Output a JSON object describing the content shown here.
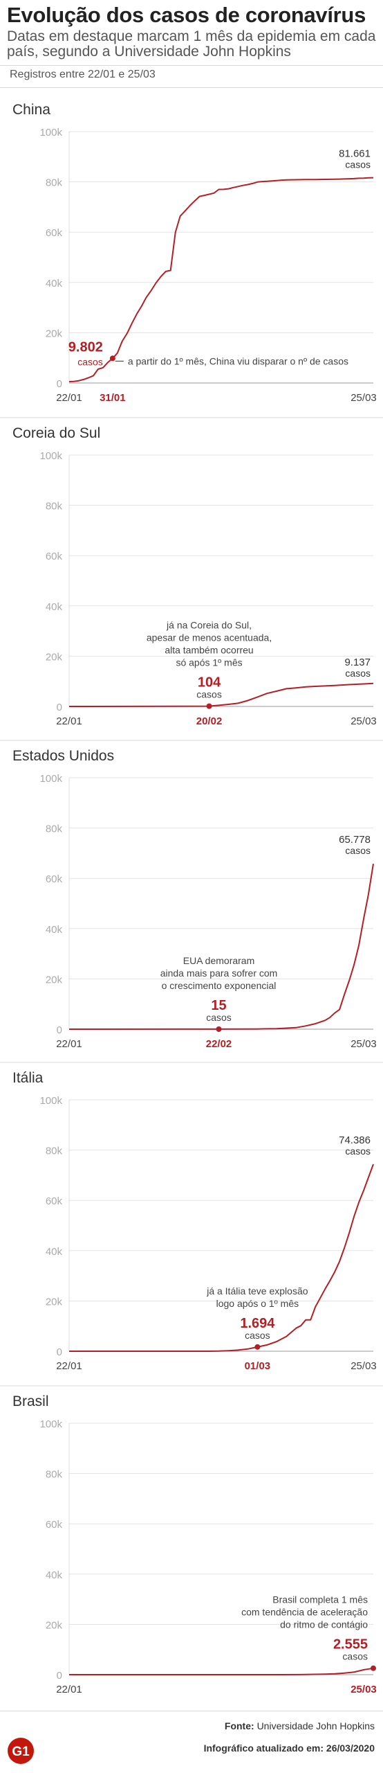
{
  "header": {
    "title": "Evolução dos casos de coronavírus",
    "subtitle": "Datas em destaque marcam 1 mês da epidemia em cada país, segundo a Universidade John Hopkins",
    "period": "Registros entre 22/01 e 25/03"
  },
  "footer": {
    "source_label": "Fonte:",
    "source_value": "Universidade John Hopkins",
    "updated_label": "Infográfico atualizado em:",
    "updated_value": "26/03/2020",
    "logo_text": "G1"
  },
  "colors": {
    "accent": "#b31f24",
    "grid": "#e3e3e3",
    "axis_text": "#aaaaaa",
    "brand": "#c4170c"
  },
  "chart_data": [
    {
      "type": "line",
      "title": "China",
      "ylim": [
        0,
        100000
      ],
      "yticks": [
        "0",
        "20k",
        "40k",
        "60k",
        "80k",
        "100k"
      ],
      "xlim": [
        "22/01",
        "25/03"
      ],
      "x_start_label": "22/01",
      "x_end_label": "25/03",
      "highlight": {
        "x": "31/01",
        "value": 9802,
        "value_label": "9.802",
        "unit": "casos"
      },
      "final": {
        "x": "25/03",
        "value": 81661,
        "value_label": "81.661",
        "unit": "casos"
      },
      "note": [
        "a partir do 1º mês, China viu disparar o nº de casos"
      ],
      "series": [
        {
          "x": [
            "22/01",
            "23/01",
            "24/01",
            "25/01",
            "26/01",
            "27/01",
            "28/01",
            "29/01",
            "30/01",
            "31/01",
            "01/02",
            "02/02",
            "03/02",
            "04/02",
            "05/02",
            "06/02",
            "07/02",
            "08/02",
            "09/02",
            "10/02",
            "11/02",
            "12/02",
            "13/02",
            "14/02",
            "15/02",
            "16/02",
            "17/02",
            "18/02",
            "19/02",
            "20/02",
            "21/02",
            "22/02",
            "23/02",
            "24/02",
            "25/02",
            "26/02",
            "27/02",
            "28/02",
            "29/02",
            "01/03",
            "02/03",
            "03/03",
            "04/03",
            "05/03",
            "06/03",
            "07/03",
            "08/03",
            "09/03",
            "10/03",
            "11/03",
            "12/03",
            "13/03",
            "14/03",
            "15/03",
            "16/03",
            "17/03",
            "18/03",
            "19/03",
            "20/03",
            "21/03",
            "22/03",
            "23/03",
            "24/03",
            "25/03"
          ],
          "values": [
            548,
            643,
            920,
            1406,
            2075,
            2877,
            5509,
            6087,
            8141,
            9802,
            11891,
            16630,
            19716,
            23707,
            27440,
            30587,
            34110,
            36814,
            39829,
            42354,
            44386,
            44759,
            59895,
            66358,
            68413,
            70513,
            72434,
            74211,
            74619,
            75077,
            75550,
            77001,
            77022,
            77241,
            77754,
            78166,
            78600,
            78928,
            79356,
            79932,
            80136,
            80261,
            80386,
            80537,
            80690,
            80770,
            80823,
            80860,
            80887,
            80921,
            80932,
            80945,
            80977,
            81003,
            81033,
            81058,
            81102,
            81156,
            81250,
            81305,
            81435,
            81498,
            81591,
            81661
          ]
        }
      ]
    },
    {
      "type": "line",
      "title": "Coreia do Sul",
      "ylim": [
        0,
        100000
      ],
      "yticks": [
        "0",
        "20k",
        "40k",
        "60k",
        "80k",
        "100k"
      ],
      "xlim": [
        "22/01",
        "25/03"
      ],
      "x_start_label": "22/01",
      "x_end_label": "25/03",
      "highlight": {
        "x": "20/02",
        "value": 104,
        "value_label": "104",
        "unit": "casos"
      },
      "final": {
        "x": "25/03",
        "value": 9137,
        "value_label": "9.137",
        "unit": "casos"
      },
      "note": [
        "já na Coreia do Sul,",
        "apesar de menos acentuada,",
        "alta também ocorreu",
        "só após 1º mês"
      ],
      "series": [
        {
          "x": [
            "22/01",
            "20/02",
            "22/02",
            "24/02",
            "26/02",
            "28/02",
            "01/03",
            "03/03",
            "05/03",
            "07/03",
            "09/03",
            "11/03",
            "13/03",
            "15/03",
            "17/03",
            "19/03",
            "21/03",
            "23/03",
            "25/03"
          ],
          "values": [
            1,
            104,
            433,
            833,
            1261,
            2337,
            3736,
            5186,
            6088,
            7041,
            7382,
            7755,
            7979,
            8162,
            8320,
            8565,
            8799,
            8961,
            9137
          ]
        }
      ]
    },
    {
      "type": "line",
      "title": "Estados Unidos",
      "ylim": [
        0,
        100000
      ],
      "yticks": [
        "0",
        "20k",
        "40k",
        "60k",
        "80k",
        "100k"
      ],
      "xlim": [
        "22/01",
        "25/03"
      ],
      "x_start_label": "22/01",
      "x_end_label": "25/03",
      "highlight": {
        "x": "22/02",
        "value": 15,
        "value_label": "15",
        "unit": "casos"
      },
      "final": {
        "x": "25/03",
        "value": 65778,
        "value_label": "65.778",
        "unit": "casos"
      },
      "note": [
        "EUA demoraram",
        "ainda mais para sofrer com",
        "o crescimento exponencial"
      ],
      "series": [
        {
          "x": [
            "22/01",
            "22/02",
            "01/03",
            "05/03",
            "09/03",
            "11/03",
            "13/03",
            "15/03",
            "16/03",
            "17/03",
            "18/03",
            "19/03",
            "20/03",
            "21/03",
            "22/03",
            "23/03",
            "24/03",
            "25/03"
          ],
          "values": [
            1,
            15,
            74,
            217,
            605,
            1281,
            2179,
            3499,
            4632,
            6421,
            7783,
            13747,
            19273,
            25600,
            33276,
            43847,
            53740,
            65778
          ]
        }
      ]
    },
    {
      "type": "line",
      "title": "Itália",
      "ylim": [
        0,
        100000
      ],
      "yticks": [
        "0",
        "20k",
        "40k",
        "60k",
        "80k",
        "100k"
      ],
      "xlim": [
        "22/01",
        "25/03"
      ],
      "x_start_label": "22/01",
      "x_end_label": "25/03",
      "highlight": {
        "x": "01/03",
        "value": 1694,
        "value_label": "1.694",
        "unit": "casos"
      },
      "final": {
        "x": "25/03",
        "value": 74386,
        "value_label": "74.386",
        "unit": "casos"
      },
      "note": [
        "já a Itália teve explosão",
        "logo após o 1º mês"
      ],
      "series": [
        {
          "x": [
            "22/01",
            "31/01",
            "20/02",
            "22/02",
            "24/02",
            "26/02",
            "28/02",
            "01/03",
            "03/03",
            "05/03",
            "07/03",
            "09/03",
            "10/03",
            "11/03",
            "12/03",
            "13/03",
            "14/03",
            "15/03",
            "16/03",
            "17/03",
            "18/03",
            "19/03",
            "20/03",
            "21/03",
            "22/03",
            "23/03",
            "24/03",
            "25/03"
          ],
          "values": [
            0,
            2,
            3,
            62,
            229,
            453,
            888,
            1694,
            2502,
            3858,
            5883,
            9172,
            10149,
            12462,
            12462,
            17660,
            21157,
            24747,
            27980,
            31506,
            35713,
            41035,
            47021,
            53578,
            59138,
            63927,
            69176,
            74386
          ]
        }
      ]
    },
    {
      "type": "line",
      "title": "Brasil",
      "ylim": [
        0,
        100000
      ],
      "yticks": [
        "0",
        "20k",
        "40k",
        "60k",
        "80k",
        "100k"
      ],
      "xlim": [
        "22/01",
        "25/03"
      ],
      "x_start_label": "22/01",
      "x_end_label": "",
      "highlight": {
        "x": "25/03",
        "value": 2555,
        "value_label": "2.555",
        "unit": "casos"
      },
      "final": null,
      "note": [
        "Brasil completa 1 mês",
        "com tendência de aceleração",
        "do ritmo de contágio"
      ],
      "series": [
        {
          "x": [
            "22/01",
            "26/02",
            "06/03",
            "10/03",
            "13/03",
            "15/03",
            "17/03",
            "19/03",
            "21/03",
            "23/03",
            "24/03",
            "25/03"
          ],
          "values": [
            0,
            1,
            13,
            31,
            151,
            200,
            321,
            621,
            1021,
            1924,
            2247,
            2555
          ]
        }
      ]
    }
  ]
}
